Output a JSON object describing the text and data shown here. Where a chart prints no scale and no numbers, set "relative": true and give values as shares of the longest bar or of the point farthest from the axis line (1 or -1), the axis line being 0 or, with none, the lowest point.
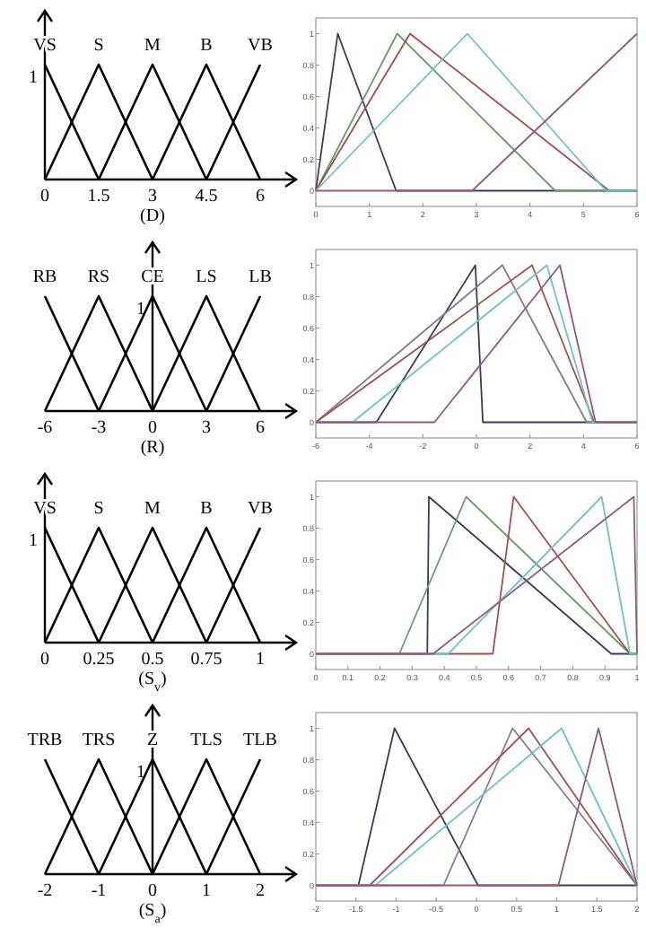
{
  "chart_data": [
    {
      "type": "line",
      "relative": true,
      "xlabel": "(D)",
      "xlim": [
        0,
        6
      ],
      "xticks": [
        0,
        1.5,
        3,
        4.5,
        6
      ],
      "annotations": [
        "1"
      ],
      "tick_labels": "x",
      "legend": "top",
      "series": [
        {
          "name": "VS",
          "color": "#000000",
          "x": [
            0,
            1.5
          ],
          "values": [
            1,
            0
          ]
        },
        {
          "name": "S",
          "color": "#000000",
          "x": [
            0,
            1.5,
            3
          ],
          "values": [
            0,
            1,
            0
          ]
        },
        {
          "name": "M",
          "color": "#000000",
          "x": [
            1.5,
            3,
            4.5
          ],
          "values": [
            0,
            1,
            0
          ]
        },
        {
          "name": "B",
          "color": "#000000",
          "x": [
            3,
            4.5,
            6
          ],
          "values": [
            0,
            1,
            0
          ]
        },
        {
          "name": "VB",
          "color": "#000000",
          "x": [
            4.5,
            6
          ],
          "values": [
            0,
            1
          ]
        }
      ]
    },
    {
      "type": "line",
      "xlim": [
        0,
        6
      ],
      "xticks": [
        0,
        1,
        2,
        3,
        4,
        5,
        6
      ],
      "ylim": [
        -0.1,
        1.1
      ],
      "yticks": [
        0,
        0.2,
        0.4,
        0.6,
        0.8,
        1
      ],
      "series": [
        {
          "color": "#3a3a5a",
          "x": [
            0,
            0.41,
            1.5,
            6
          ],
          "values": [
            0,
            1,
            0,
            0
          ]
        },
        {
          "color": "#6a9a6a",
          "x": [
            0,
            1.52,
            4.47,
            6
          ],
          "values": [
            0,
            1,
            0,
            0
          ]
        },
        {
          "color": "#a0504a",
          "x": [
            0,
            1.76,
            5.48,
            6
          ],
          "values": [
            0,
            1,
            0,
            0
          ]
        },
        {
          "color": "#70c0c8",
          "x": [
            0,
            2.83,
            5.42,
            6
          ],
          "values": [
            0,
            1,
            0,
            0
          ]
        },
        {
          "color": "#905a80",
          "x": [
            0,
            2.92,
            6
          ],
          "values": [
            0,
            0,
            1
          ]
        }
      ]
    },
    {
      "type": "line",
      "relative": true,
      "xlabel": "(R)",
      "xlim": [
        -6,
        6
      ],
      "xticks": [
        -6,
        -3,
        0,
        3,
        6
      ],
      "annotations": [
        "1"
      ],
      "tick_labels": "x",
      "legend": "top",
      "series": [
        {
          "name": "RB",
          "color": "#000000",
          "x": [
            -6,
            -3
          ],
          "values": [
            1,
            0
          ]
        },
        {
          "name": "RS",
          "color": "#000000",
          "x": [
            -6,
            -3,
            0
          ],
          "values": [
            0,
            1,
            0
          ]
        },
        {
          "name": "CE",
          "color": "#000000",
          "x": [
            -3,
            0,
            3
          ],
          "values": [
            0,
            1,
            0
          ]
        },
        {
          "name": "LS",
          "color": "#000000",
          "x": [
            0,
            3,
            6
          ],
          "values": [
            0,
            1,
            0
          ]
        },
        {
          "name": "LB",
          "color": "#000000",
          "x": [
            3,
            6
          ],
          "values": [
            0,
            1
          ]
        }
      ]
    },
    {
      "type": "line",
      "xlim": [
        -6,
        6
      ],
      "xticks": [
        -6,
        -4,
        -2,
        0,
        2,
        4,
        6
      ],
      "ylim": [
        -0.1,
        1.1
      ],
      "yticks": [
        0,
        0.2,
        0.4,
        0.6,
        0.8,
        1
      ],
      "series": [
        {
          "color": "#3a3a5a",
          "x": [
            -6,
            -3.74,
            -0.04,
            0.24,
            6
          ],
          "values": [
            0,
            0,
            1,
            0,
            0
          ]
        },
        {
          "color": "#8a7a8a",
          "x": [
            -6,
            0.97,
            4.12,
            6
          ],
          "values": [
            0,
            1,
            0,
            0
          ]
        },
        {
          "color": "#a0504a",
          "x": [
            -6,
            2.08,
            4.4,
            6
          ],
          "values": [
            0,
            1,
            0,
            0
          ]
        },
        {
          "color": "#70c0c8",
          "x": [
            -6,
            -4.63,
            2.63,
            4.34,
            6
          ],
          "values": [
            0,
            0,
            1,
            0,
            0
          ]
        },
        {
          "color": "#905a80",
          "x": [
            -6,
            -1.57,
            3.12,
            4.45,
            6
          ],
          "values": [
            0,
            0,
            1,
            0,
            0
          ]
        }
      ]
    },
    {
      "type": "line",
      "relative": true,
      "xlabel": "(S$_{v}$)",
      "xlim": [
        0,
        1
      ],
      "xticks": [
        0,
        0.25,
        0.5,
        0.75,
        1
      ],
      "annotations": [
        "1"
      ],
      "tick_labels": "x",
      "legend": "top",
      "series": [
        {
          "name": "VS",
          "color": "#000000",
          "x": [
            0,
            0.25
          ],
          "values": [
            1,
            0
          ]
        },
        {
          "name": "S",
          "color": "#000000",
          "x": [
            0,
            0.25,
            0.5
          ],
          "values": [
            0,
            1,
            0
          ]
        },
        {
          "name": "M",
          "color": "#000000",
          "x": [
            0.25,
            0.5,
            0.75
          ],
          "values": [
            0,
            1,
            0
          ]
        },
        {
          "name": "B",
          "color": "#000000",
          "x": [
            0.5,
            0.75,
            1
          ],
          "values": [
            0,
            1,
            0
          ]
        },
        {
          "name": "VB",
          "color": "#000000",
          "x": [
            0.75,
            1
          ],
          "values": [
            0,
            1
          ]
        }
      ]
    },
    {
      "type": "line",
      "xlim": [
        0,
        1
      ],
      "xticks": [
        0,
        0.1,
        0.2,
        0.3,
        0.4,
        0.5,
        0.6,
        0.7,
        0.8,
        0.9,
        1
      ],
      "ylim": [
        -0.1,
        1.1
      ],
      "yticks": [
        0,
        0.2,
        0.4,
        0.6,
        0.8,
        1
      ],
      "series": [
        {
          "color": "#3a3a5a",
          "x": [
            0,
            0.347,
            0.352,
            0.92,
            1
          ],
          "values": [
            0,
            0,
            1,
            0,
            0
          ]
        },
        {
          "color": "#6a9a6a",
          "x": [
            0,
            0.26,
            0.468,
            0.978,
            1
          ],
          "values": [
            0,
            0,
            1,
            0,
            0
          ]
        },
        {
          "color": "#a0504a",
          "x": [
            0,
            0.551,
            0.616,
            0.978,
            1
          ],
          "values": [
            0,
            0,
            1,
            0,
            0
          ]
        },
        {
          "color": "#70c0c8",
          "x": [
            0,
            0.412,
            0.89,
            0.978,
            1
          ],
          "values": [
            0,
            0,
            1,
            0,
            0
          ]
        },
        {
          "color": "#905a80",
          "x": [
            0,
            0.365,
            0.99,
            1
          ],
          "values": [
            0,
            0,
            1,
            0
          ]
        }
      ]
    },
    {
      "type": "line",
      "relative": true,
      "xlabel": "(S$_{a}$)",
      "xlim": [
        -2,
        2
      ],
      "xticks": [
        -2,
        -1,
        0,
        1,
        2
      ],
      "annotations": [
        "1"
      ],
      "tick_labels": "x",
      "legend": "top",
      "series": [
        {
          "name": "TRB",
          "color": "#000000",
          "x": [
            -2,
            -1
          ],
          "values": [
            1,
            0
          ]
        },
        {
          "name": "TRS",
          "color": "#000000",
          "x": [
            -2,
            -1,
            0
          ],
          "values": [
            0,
            1,
            0
          ]
        },
        {
          "name": "Z",
          "color": "#000000",
          "x": [
            -1,
            0,
            1
          ],
          "values": [
            0,
            1,
            0
          ]
        },
        {
          "name": "TLS",
          "color": "#000000",
          "x": [
            0,
            1,
            2
          ],
          "values": [
            0,
            1,
            0
          ]
        },
        {
          "name": "TLB",
          "color": "#000000",
          "x": [
            1,
            2
          ],
          "values": [
            0,
            1
          ]
        }
      ]
    },
    {
      "type": "line",
      "xlim": [
        -2,
        2
      ],
      "xticks": [
        -2,
        -1.5,
        -1,
        -0.5,
        0,
        0.5,
        1,
        1.5,
        2
      ],
      "ylim": [
        -0.1,
        1.1
      ],
      "yticks": [
        0,
        0.2,
        0.4,
        0.6,
        0.8,
        1
      ],
      "series": [
        {
          "color": "#3a3a5a",
          "x": [
            -2,
            -1.47,
            -1.02,
            0.02,
            2
          ],
          "values": [
            0,
            0,
            1,
            0,
            0
          ]
        },
        {
          "color": "#8a7a8a",
          "x": [
            -2,
            -0.41,
            0.45,
            2
          ],
          "values": [
            0,
            0,
            1,
            0
          ]
        },
        {
          "color": "#a0504a",
          "x": [
            -2,
            -1.33,
            0.65,
            2
          ],
          "values": [
            0,
            0,
            1,
            0
          ]
        },
        {
          "color": "#70c0c8",
          "x": [
            -2,
            -1.26,
            1.06,
            2
          ],
          "values": [
            0,
            0,
            1,
            0
          ]
        },
        {
          "color": "#905a80",
          "x": [
            -2,
            1.02,
            1.52,
            2
          ],
          "values": [
            0,
            0,
            1,
            0
          ]
        }
      ]
    }
  ]
}
